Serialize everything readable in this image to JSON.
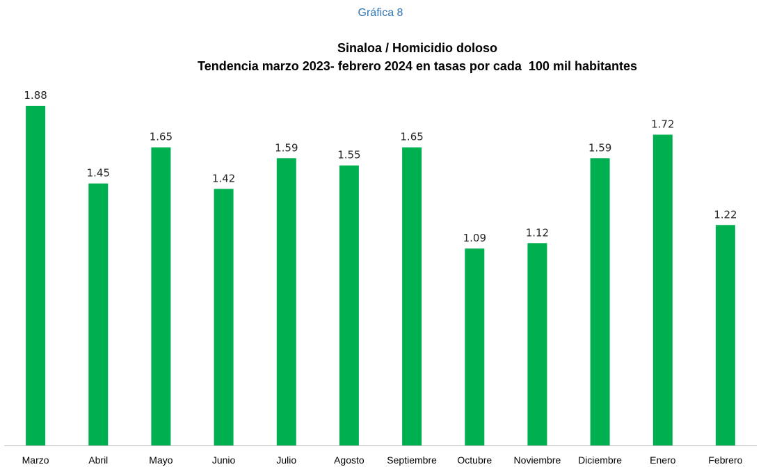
{
  "figure_label": "Gráfica 8",
  "colors": {
    "bar": "#00b050",
    "axis": "#bfbfbf",
    "label": "#262626",
    "figure_label": "#2e75b6"
  },
  "chart_data": {
    "type": "bar",
    "title": "Sinaloa / Homicidio doloso",
    "subtitle": "Tendencia marzo 2023- febrero 2024 en tasas por cada  100 mil habitantes",
    "xlabel": "",
    "ylabel": "",
    "categories": [
      "Marzo",
      "Abril",
      "Mayo",
      "Junio",
      "Julio",
      "Agosto",
      "Septiembre",
      "Octubre",
      "Noviembre",
      "Diciembre",
      "Enero",
      "Febrero"
    ],
    "values": [
      1.88,
      1.45,
      1.65,
      1.42,
      1.59,
      1.55,
      1.65,
      1.09,
      1.12,
      1.59,
      1.72,
      1.22
    ],
    "data_labels": [
      "1.88",
      "1.45",
      "1.65",
      "1.42",
      "1.59",
      "1.55",
      "1.65",
      "1.09",
      "1.12",
      "1.59",
      "1.72",
      "1.22"
    ],
    "ylim": [
      0,
      1.88
    ],
    "grid": false,
    "legend": "none"
  }
}
